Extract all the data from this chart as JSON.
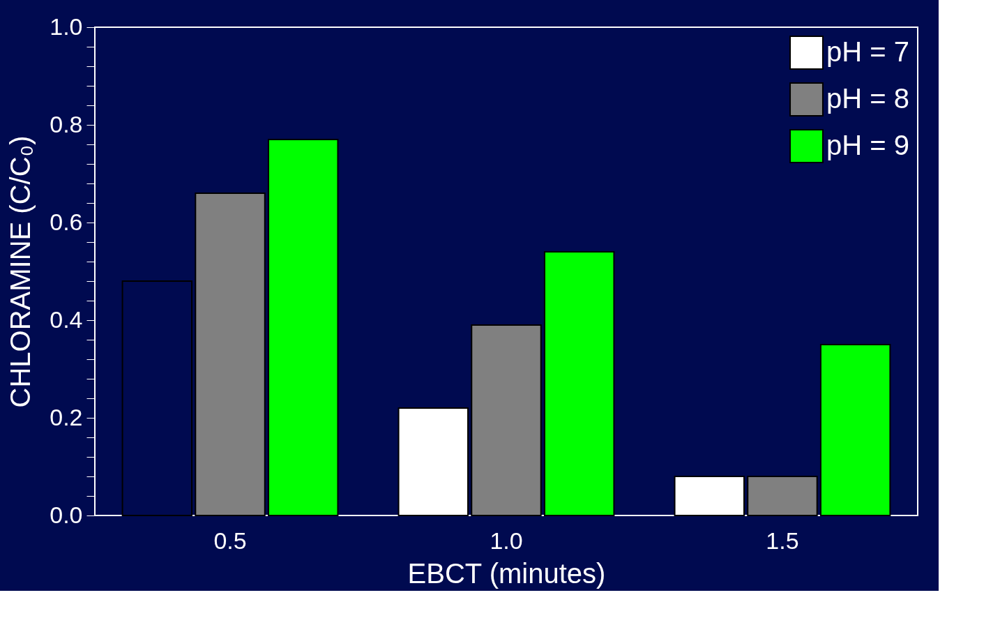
{
  "chart_data": {
    "type": "bar",
    "xlabel": "EBCT (minutes)",
    "ylabel": "CHLORAMINE (C/C₀)",
    "categories": [
      "0.5",
      "1.0",
      "1.5"
    ],
    "ylim": [
      0,
      1.0
    ],
    "yticks": [
      {
        "value": 0,
        "label": "0.0"
      },
      {
        "value": 0.04,
        "label": null
      },
      {
        "value": 0.08,
        "label": null
      },
      {
        "value": 0.12,
        "label": null
      },
      {
        "value": 0.16,
        "label": null
      },
      0.2,
      {
        "value": 0.24,
        "label": null
      },
      {
        "value": 0.28,
        "label": null
      },
      {
        "value": 0.32,
        "label": null
      },
      {
        "value": 0.36,
        "label": null
      },
      0.4,
      {
        "value": 0.44,
        "label": null
      },
      {
        "value": 0.48,
        "label": null
      },
      {
        "value": 0.52,
        "label": null
      },
      {
        "value": 0.56,
        "label": null
      },
      0.6,
      {
        "value": 0.64,
        "label": null
      },
      {
        "value": 0.68,
        "label": null
      },
      {
        "value": 0.72,
        "label": null
      },
      {
        "value": 0.76,
        "label": null
      },
      0.8,
      {
        "value": 0.84,
        "label": null
      },
      {
        "value": 0.88,
        "label": null
      },
      {
        "value": 0.92,
        "label": null
      },
      {
        "value": 0.96,
        "label": null
      },
      {
        "value": 1.0,
        "label": "1.0"
      }
    ],
    "legend": "top right",
    "grid": false,
    "series": [
      {
        "name": "pH = 7",
        "color": "#ffffff",
        "colors": [
          "#000a50",
          "#ffffff",
          "#ffffff"
        ],
        "values": [
          0.48,
          0.22,
          0.08
        ]
      },
      {
        "name": "pH = 8",
        "color": "#808080",
        "values": [
          0.66,
          0.39,
          0.08
        ]
      },
      {
        "name": "pH = 9",
        "color": "#00ff00",
        "values": [
          0.77,
          0.54,
          0.35
        ]
      }
    ]
  }
}
